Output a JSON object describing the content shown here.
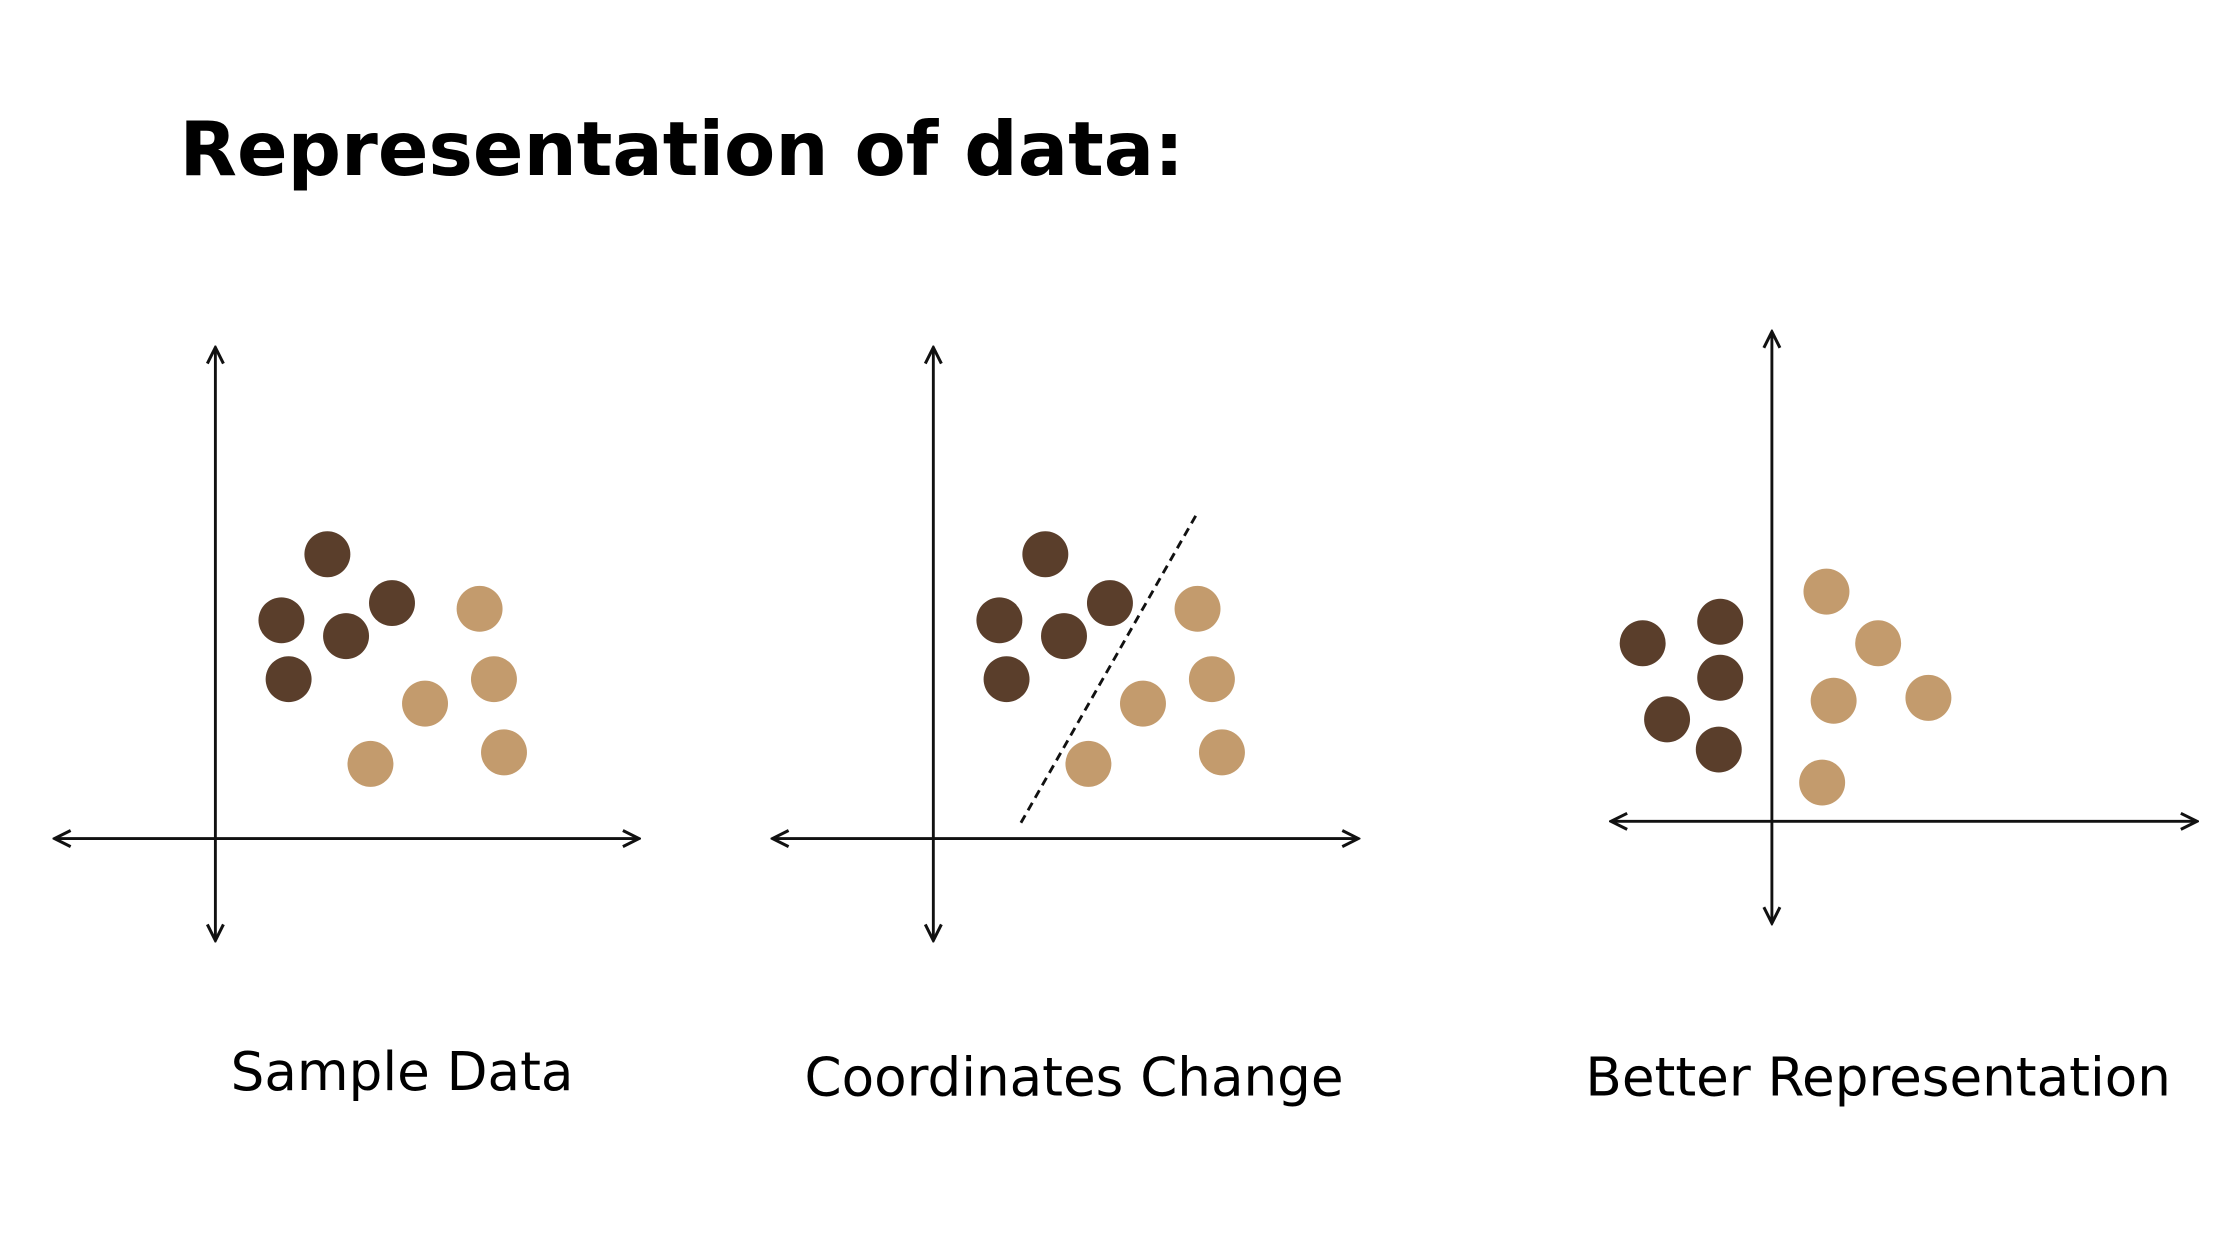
{
  "header": {
    "title": "Representation of data:"
  },
  "panels": [
    {
      "caption": "Sample Data"
    },
    {
      "caption": "Coordinates Change"
    },
    {
      "caption": "Better Representation"
    }
  ]
}
